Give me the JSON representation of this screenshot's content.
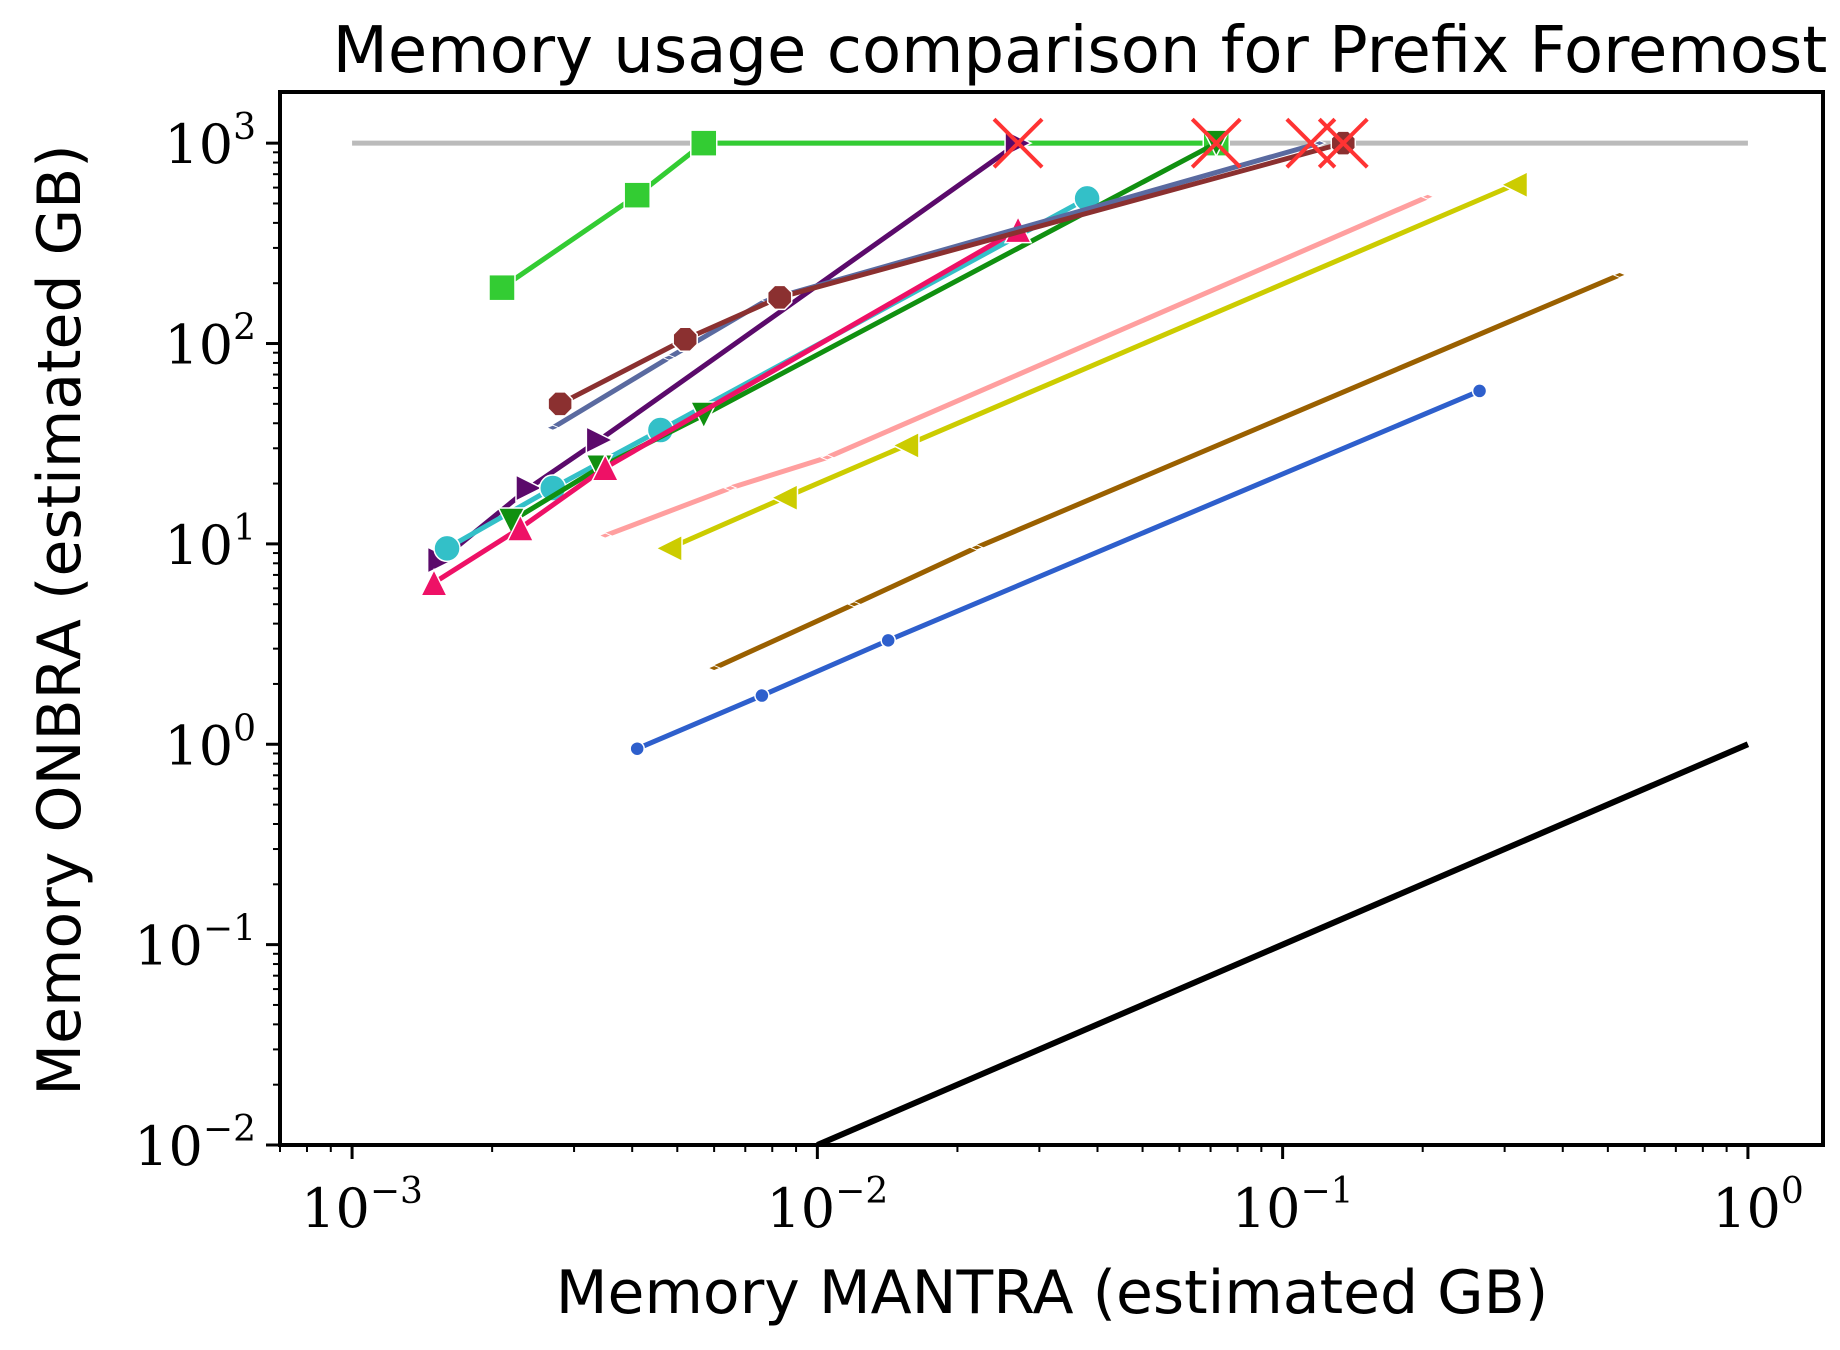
{
  "chart_data": {
    "type": "line",
    "title": "Memory usage comparison for Prefix Foremost",
    "xlabel": "Memory MANTRA (estimated GB)",
    "ylabel": "Memory ONBRA (estimated GB)",
    "xscale": "log",
    "yscale": "log",
    "xlim": [
      0.0007,
      1.45
    ],
    "ylim": [
      0.01,
      1800
    ],
    "x_ticks": [
      {
        "value": 0.001,
        "base": "10",
        "exp": "−3"
      },
      {
        "value": 0.01,
        "base": "10",
        "exp": "−2"
      },
      {
        "value": 0.1,
        "base": "10",
        "exp": "−1"
      },
      {
        "value": 1,
        "base": "10",
        "exp": "0"
      }
    ],
    "y_ticks": [
      {
        "value": 0.01,
        "base": "10",
        "exp": "−2"
      },
      {
        "value": 0.1,
        "base": "10",
        "exp": "−1"
      },
      {
        "value": 1,
        "base": "10",
        "exp": "0"
      },
      {
        "value": 10,
        "base": "10",
        "exp": "1"
      },
      {
        "value": 100,
        "base": "10",
        "exp": "2"
      },
      {
        "value": 1000,
        "base": "10",
        "exp": "3"
      }
    ],
    "reference_lines": [
      {
        "name": "identity",
        "color": "#000000",
        "points": [
          [
            0.01,
            0.01
          ],
          [
            1,
            1
          ]
        ]
      },
      {
        "name": "memory-limit",
        "color": "#bbbbbb",
        "points": [
          [
            0.001,
            1000
          ],
          [
            1,
            1000
          ]
        ]
      }
    ],
    "series": [
      {
        "name": "green-squares",
        "color": "#33cc33",
        "marker": "square",
        "x": [
          0.0021,
          0.0041,
          0.0057,
          0.072
        ],
        "y": [
          190,
          550,
          1000,
          1000
        ]
      },
      {
        "name": "purple-right-triangles",
        "color": "#5b0a6b",
        "marker": "triangle-right",
        "x": [
          0.00155,
          0.0024,
          0.0034,
          0.027
        ],
        "y": [
          8.3,
          19,
          33,
          1000
        ]
      },
      {
        "name": "teal-circles",
        "color": "#33c0c8",
        "marker": "circle",
        "x": [
          0.0016,
          0.0027,
          0.0046,
          0.038
        ],
        "y": [
          9.5,
          19,
          37,
          530
        ]
      },
      {
        "name": "dark-green-down-triangles",
        "color": "#109010",
        "marker": "triangle-down",
        "x": [
          0.0022,
          0.0034,
          0.0057,
          0.072
        ],
        "y": [
          13,
          24,
          44,
          1000
        ]
      },
      {
        "name": "pink-up-triangles",
        "color": "#ee1166",
        "marker": "triangle-up",
        "x": [
          0.0015,
          0.0023,
          0.0035,
          0.027
        ],
        "y": [
          6.4,
          12,
          24,
          370
        ]
      },
      {
        "name": "slate-blue-line",
        "color": "#5a6aa0",
        "marker": "thin-diamond",
        "x": [
          0.0027,
          0.0048,
          0.0078,
          0.12
        ],
        "y": [
          38,
          85,
          165,
          1000
        ]
      },
      {
        "name": "brown-octagons",
        "color": "#8b3030",
        "marker": "octagon",
        "x": [
          0.0028,
          0.0052,
          0.0083,
          0.135
        ],
        "y": [
          50,
          105,
          170,
          1000
        ]
      },
      {
        "name": "salmon-line",
        "color": "#ff9f9f",
        "marker": "thin-diamond",
        "x": [
          0.0035,
          0.0065,
          0.0105,
          0.205
        ],
        "y": [
          11,
          19,
          27,
          540
        ]
      },
      {
        "name": "yellow-left-triangles",
        "color": "#cccc00",
        "marker": "triangle-left",
        "x": [
          0.0048,
          0.0085,
          0.0155,
          0.315
        ],
        "y": [
          9.5,
          17,
          31,
          620
        ]
      },
      {
        "name": "ochre-line",
        "color": "#9a6000",
        "marker": "thin-diamond",
        "x": [
          0.006,
          0.012,
          0.022,
          0.53
        ],
        "y": [
          2.4,
          5,
          9.6,
          220
        ]
      },
      {
        "name": "blue-dots",
        "color": "#2e5fcc",
        "marker": "dot",
        "x": [
          0.0041,
          0.0076,
          0.0142,
          0.265
        ],
        "y": [
          0.95,
          1.75,
          3.3,
          58
        ]
      }
    ],
    "failures": {
      "color": "#ff3333",
      "marker": "x",
      "points": [
        [
          0.027,
          1000
        ],
        [
          0.072,
          1000
        ],
        [
          0.115,
          1000
        ],
        [
          0.135,
          1000
        ]
      ]
    }
  }
}
